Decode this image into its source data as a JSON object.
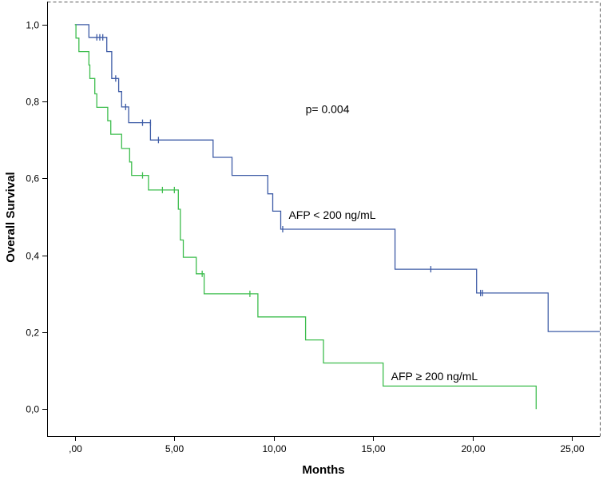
{
  "chart_data": {
    "type": "line",
    "subtype": "kaplan-meier",
    "title": "",
    "xlabel": "Months",
    "ylabel": "Overall Survival",
    "xlim": [
      -1.4,
      26.4
    ],
    "ylim": [
      -0.07,
      1.06
    ],
    "x_ticks": [
      0,
      5,
      10,
      15,
      20,
      25
    ],
    "x_tick_labels": [
      ",00",
      "5,00",
      "10,00",
      "15,00",
      "20,00",
      "25,00"
    ],
    "y_ticks": [
      0.0,
      0.2,
      0.4,
      0.6,
      0.8,
      1.0
    ],
    "y_tick_labels": [
      "0,0",
      "0,2",
      "0,4",
      "0,6",
      "0,8",
      "1,0"
    ],
    "annotation": "p= 0.004",
    "series": [
      {
        "name": "AFP < 200 ng/mL",
        "color": "#3d5ba6",
        "steps": [
          [
            0,
            1.0
          ],
          [
            0.7,
            0.967
          ],
          [
            1.6,
            0.93
          ],
          [
            1.85,
            0.86
          ],
          [
            2.2,
            0.826
          ],
          [
            2.35,
            0.786
          ],
          [
            2.7,
            0.745
          ],
          [
            3.8,
            0.7
          ],
          [
            6.95,
            0.655
          ],
          [
            7.9,
            0.608
          ],
          [
            9.7,
            0.56
          ],
          [
            9.95,
            0.515
          ],
          [
            10.35,
            0.468
          ],
          [
            16.1,
            0.364
          ],
          [
            20.2,
            0.302
          ],
          [
            23.8,
            0.202
          ],
          [
            26.4,
            0.202
          ]
        ],
        "censors": [
          [
            1.1,
            0.967
          ],
          [
            1.25,
            0.967
          ],
          [
            1.4,
            0.967
          ],
          [
            2.05,
            0.86
          ],
          [
            2.55,
            0.786
          ],
          [
            3.4,
            0.745
          ],
          [
            3.8,
            0.745
          ],
          [
            4.2,
            0.7
          ],
          [
            10.45,
            0.468
          ],
          [
            17.9,
            0.364
          ],
          [
            20.4,
            0.302
          ],
          [
            20.5,
            0.302
          ]
        ]
      },
      {
        "name": "AFP ≥ 200 ng/mL",
        "color": "#3dbd4d",
        "steps": [
          [
            0,
            1.0
          ],
          [
            0.05,
            0.965
          ],
          [
            0.2,
            0.93
          ],
          [
            0.7,
            0.895
          ],
          [
            0.75,
            0.86
          ],
          [
            1.0,
            0.82
          ],
          [
            1.1,
            0.785
          ],
          [
            1.65,
            0.75
          ],
          [
            1.8,
            0.715
          ],
          [
            2.35,
            0.678
          ],
          [
            2.75,
            0.643
          ],
          [
            2.85,
            0.608
          ],
          [
            3.7,
            0.57
          ],
          [
            5.2,
            0.52
          ],
          [
            5.3,
            0.44
          ],
          [
            5.45,
            0.395
          ],
          [
            6.1,
            0.352
          ],
          [
            6.5,
            0.3
          ],
          [
            9.2,
            0.24
          ],
          [
            11.6,
            0.18
          ],
          [
            12.5,
            0.12
          ],
          [
            15.5,
            0.06
          ],
          [
            23.2,
            0.06
          ],
          [
            23.2,
            0.0
          ]
        ],
        "censors": [
          [
            3.4,
            0.608
          ],
          [
            4.4,
            0.57
          ],
          [
            5.0,
            0.57
          ],
          [
            6.4,
            0.352
          ],
          [
            8.8,
            0.3
          ]
        ]
      }
    ],
    "series_labels": [
      {
        "text": "AFP < 200 ng/mL",
        "x": 10.75,
        "y": 0.495
      },
      {
        "text": "AFP ≥ 200 ng/mL",
        "x": 15.9,
        "y": 0.075
      }
    ],
    "annotation_pos": {
      "x": 11.6,
      "y": 0.77
    }
  }
}
